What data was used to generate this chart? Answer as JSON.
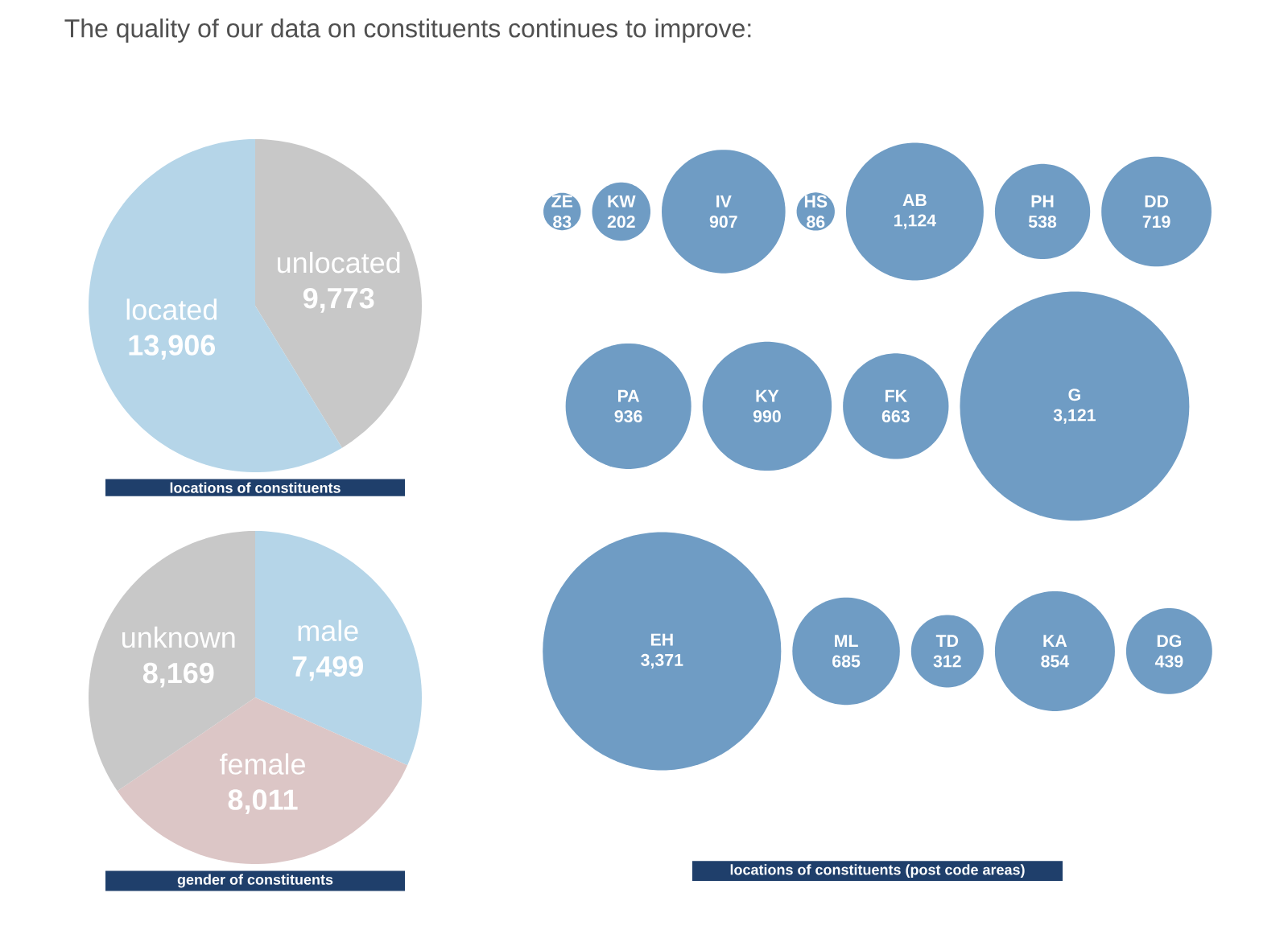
{
  "chart_data": [
    {
      "type": "pie",
      "title": "locations of constituents",
      "annotations": [
        "The quality of our data on constituents continues to improve:"
      ],
      "categories": [
        "unlocated",
        "located"
      ],
      "values": [
        9773,
        13906
      ],
      "colors": [
        "#c8c8c8",
        "#b5d5e8"
      ],
      "value_labels": [
        "9,773",
        "13,906"
      ]
    },
    {
      "type": "pie",
      "title": "gender of constituents",
      "categories": [
        "male",
        "female",
        "unknown"
      ],
      "values": [
        7499,
        8011,
        8169
      ],
      "colors": [
        "#b5d5e8",
        "#dcc6c6",
        "#c8c8c8"
      ],
      "value_labels": [
        "7,499",
        "8,011",
        "8,169"
      ]
    },
    {
      "type": "other",
      "title": "locations of constituents (post code areas)",
      "categories": [
        "ZE",
        "KW",
        "IV",
        "HS",
        "AB",
        "PH",
        "DD",
        "PA",
        "KY",
        "FK",
        "G",
        "EH",
        "ML",
        "TD",
        "KA",
        "DG"
      ],
      "values": [
        83,
        202,
        907,
        86,
        1124,
        538,
        719,
        936,
        990,
        663,
        3121,
        3371,
        685,
        312,
        854,
        439
      ],
      "color": "#6f9cc4",
      "value_labels": [
        "83",
        "202",
        "907",
        "86",
        "1,124",
        "538",
        "719",
        "936",
        "990",
        "663",
        "3,121",
        "3,371",
        "685",
        "312",
        "854",
        "439"
      ]
    }
  ]
}
